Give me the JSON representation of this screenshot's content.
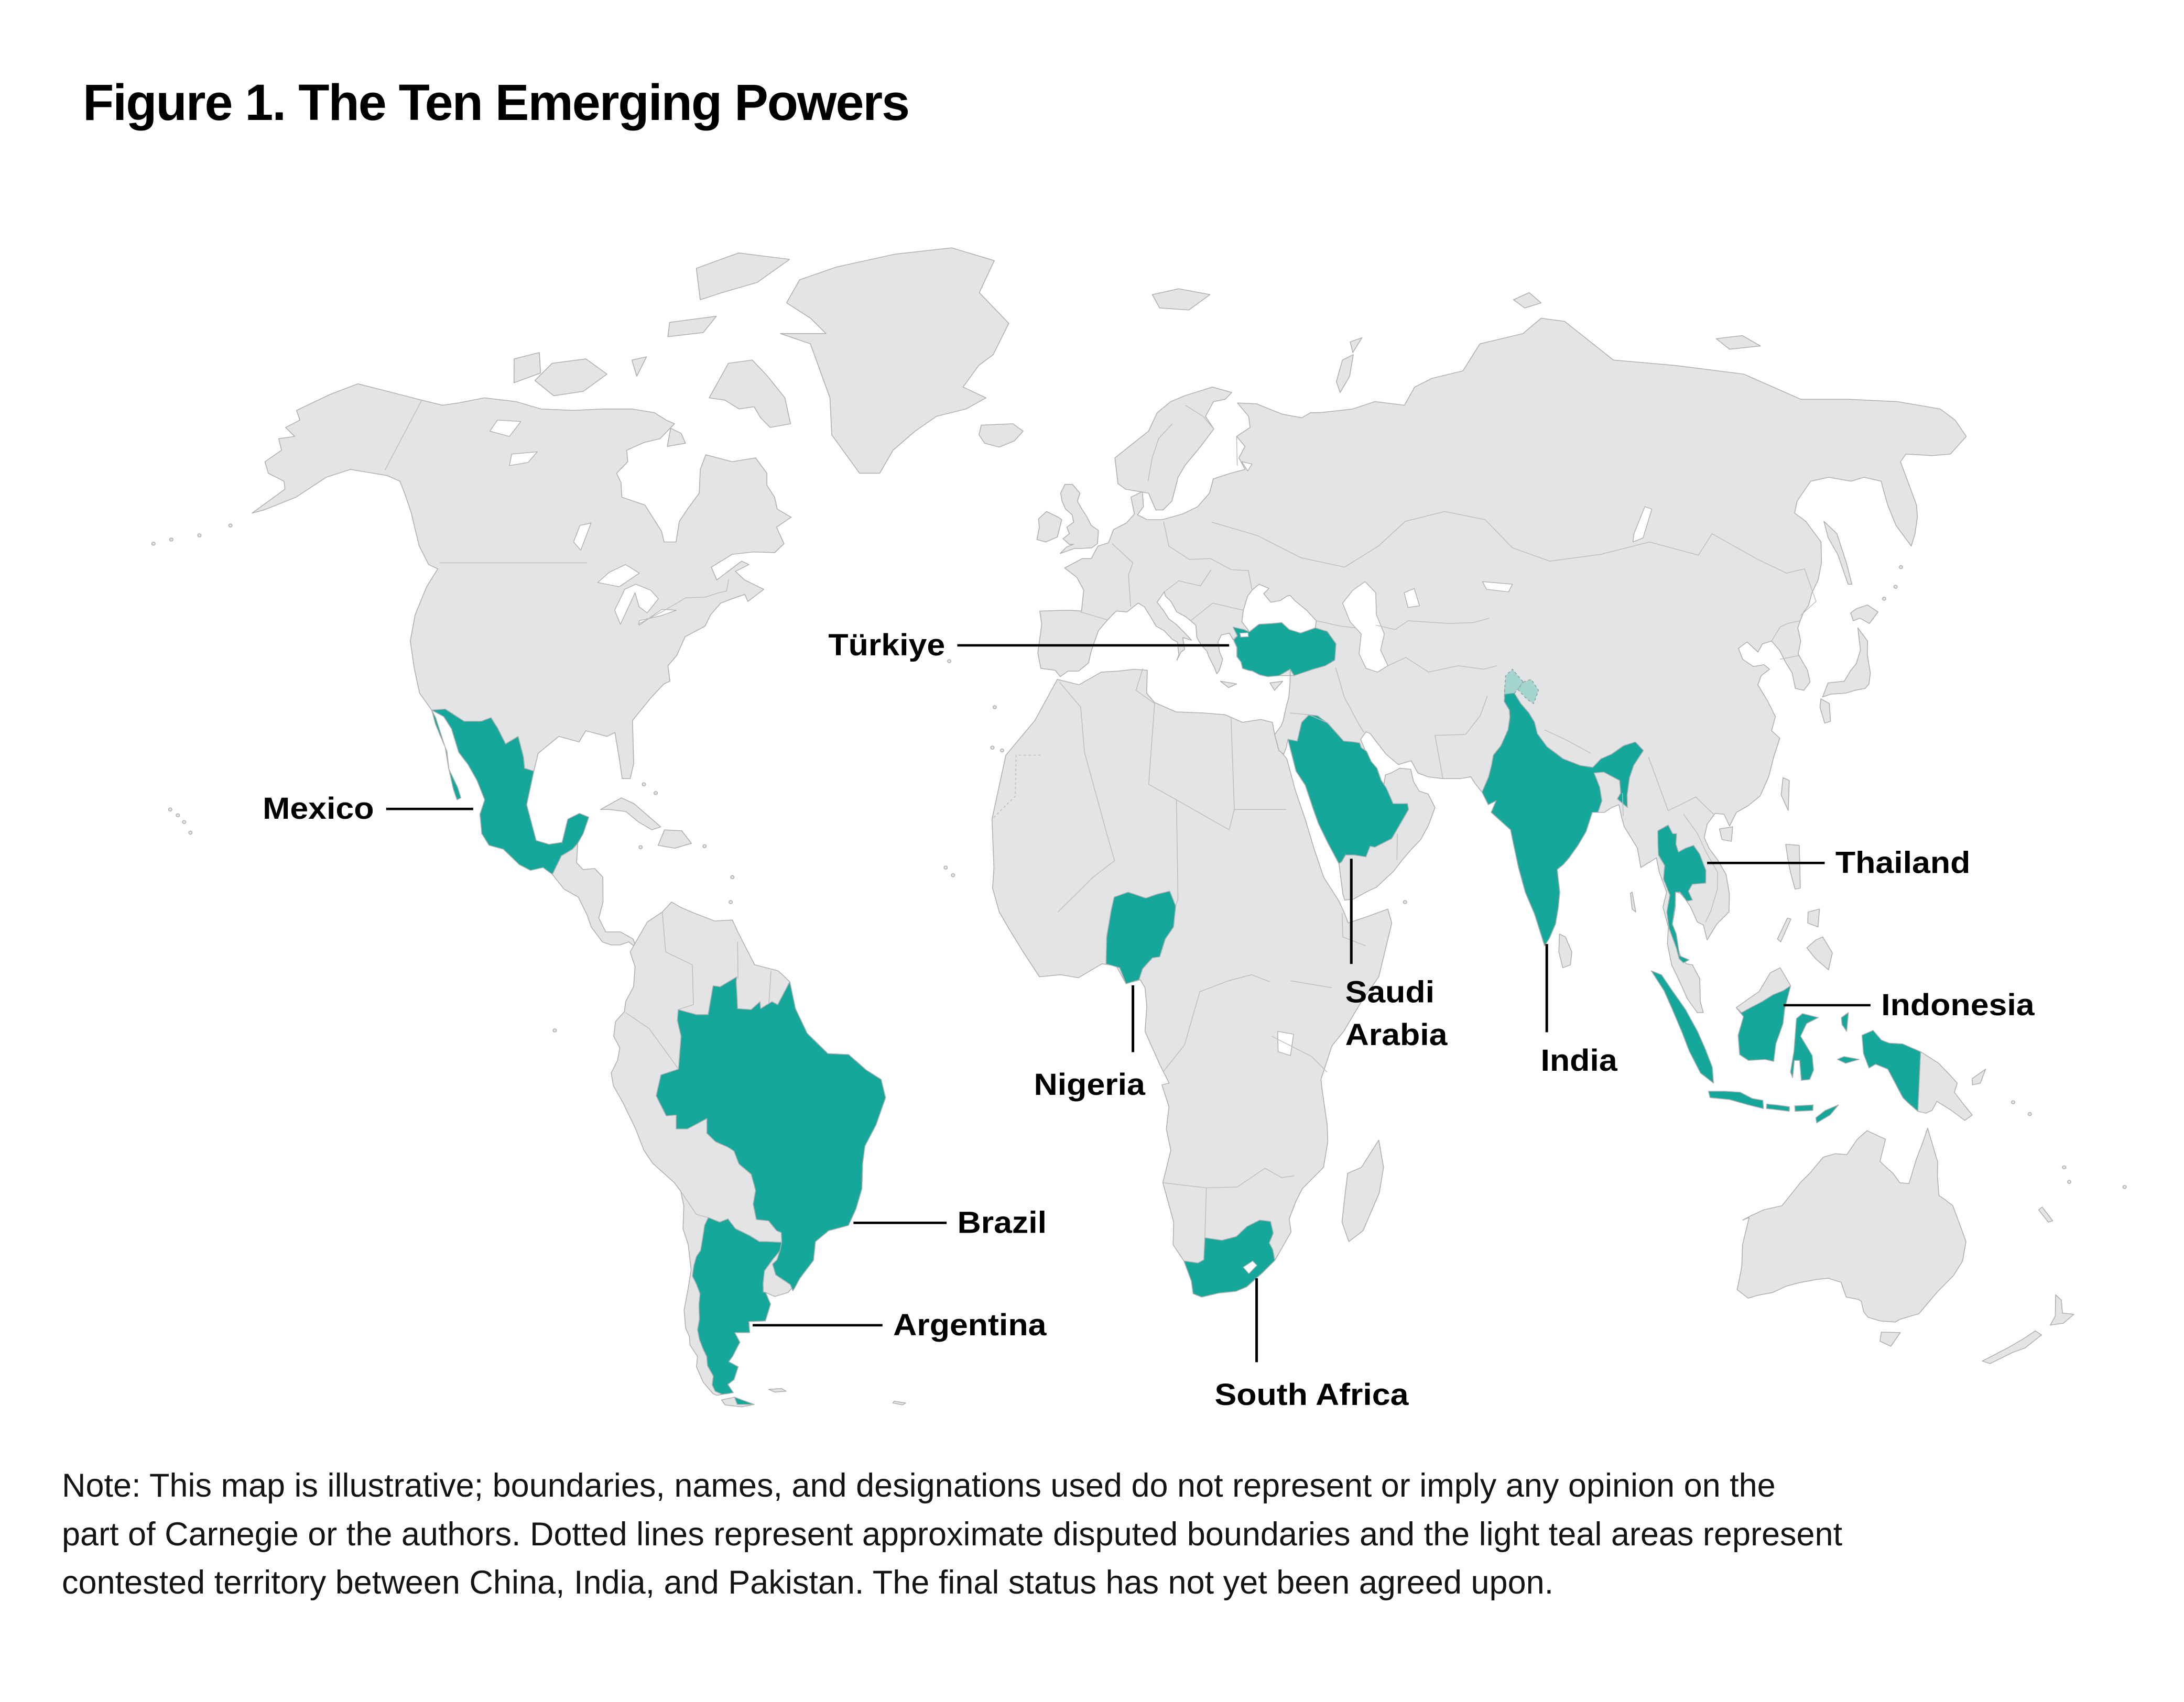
{
  "title": "Figure 1. The Ten Emerging Powers",
  "note": {
    "lines": [
      "Note: This map is illustrative; boundaries, names, and designations used do not represent or imply any opinion on the",
      "part of Carnegie or the authors. Dotted lines represent approximate disputed boundaries and the light teal areas represent",
      "contested territory between China, India, and Pakistan. The final status has not yet been agreed upon."
    ]
  },
  "map": {
    "highlighted_countries": [
      "Mexico",
      "Brazil",
      "Argentina",
      "Nigeria",
      "South Africa",
      "Türkiye",
      "Saudi Arabia",
      "India",
      "Thailand",
      "Indonesia"
    ],
    "labels": [
      {
        "id": "mexico",
        "text": "Mexico"
      },
      {
        "id": "turkiye",
        "text": "Türkiye"
      },
      {
        "id": "brazil",
        "text": "Brazil"
      },
      {
        "id": "argentina",
        "text": "Argentina"
      },
      {
        "id": "nigeria",
        "text": "Nigeria"
      },
      {
        "id": "south-africa",
        "text": "South Africa"
      },
      {
        "id": "saudi-arabia",
        "lines": [
          "Saudi",
          "Arabia"
        ]
      },
      {
        "id": "india",
        "text": "India"
      },
      {
        "id": "thailand",
        "text": "Thailand"
      },
      {
        "id": "indonesia",
        "text": "Indonesia"
      }
    ]
  },
  "colors": {
    "highlight": "#16a79b",
    "disputed": "#a3d4cf",
    "land": "#e3e4e5",
    "coast": "#adafb1",
    "border": "#b9bbbd",
    "text": "#000000"
  }
}
